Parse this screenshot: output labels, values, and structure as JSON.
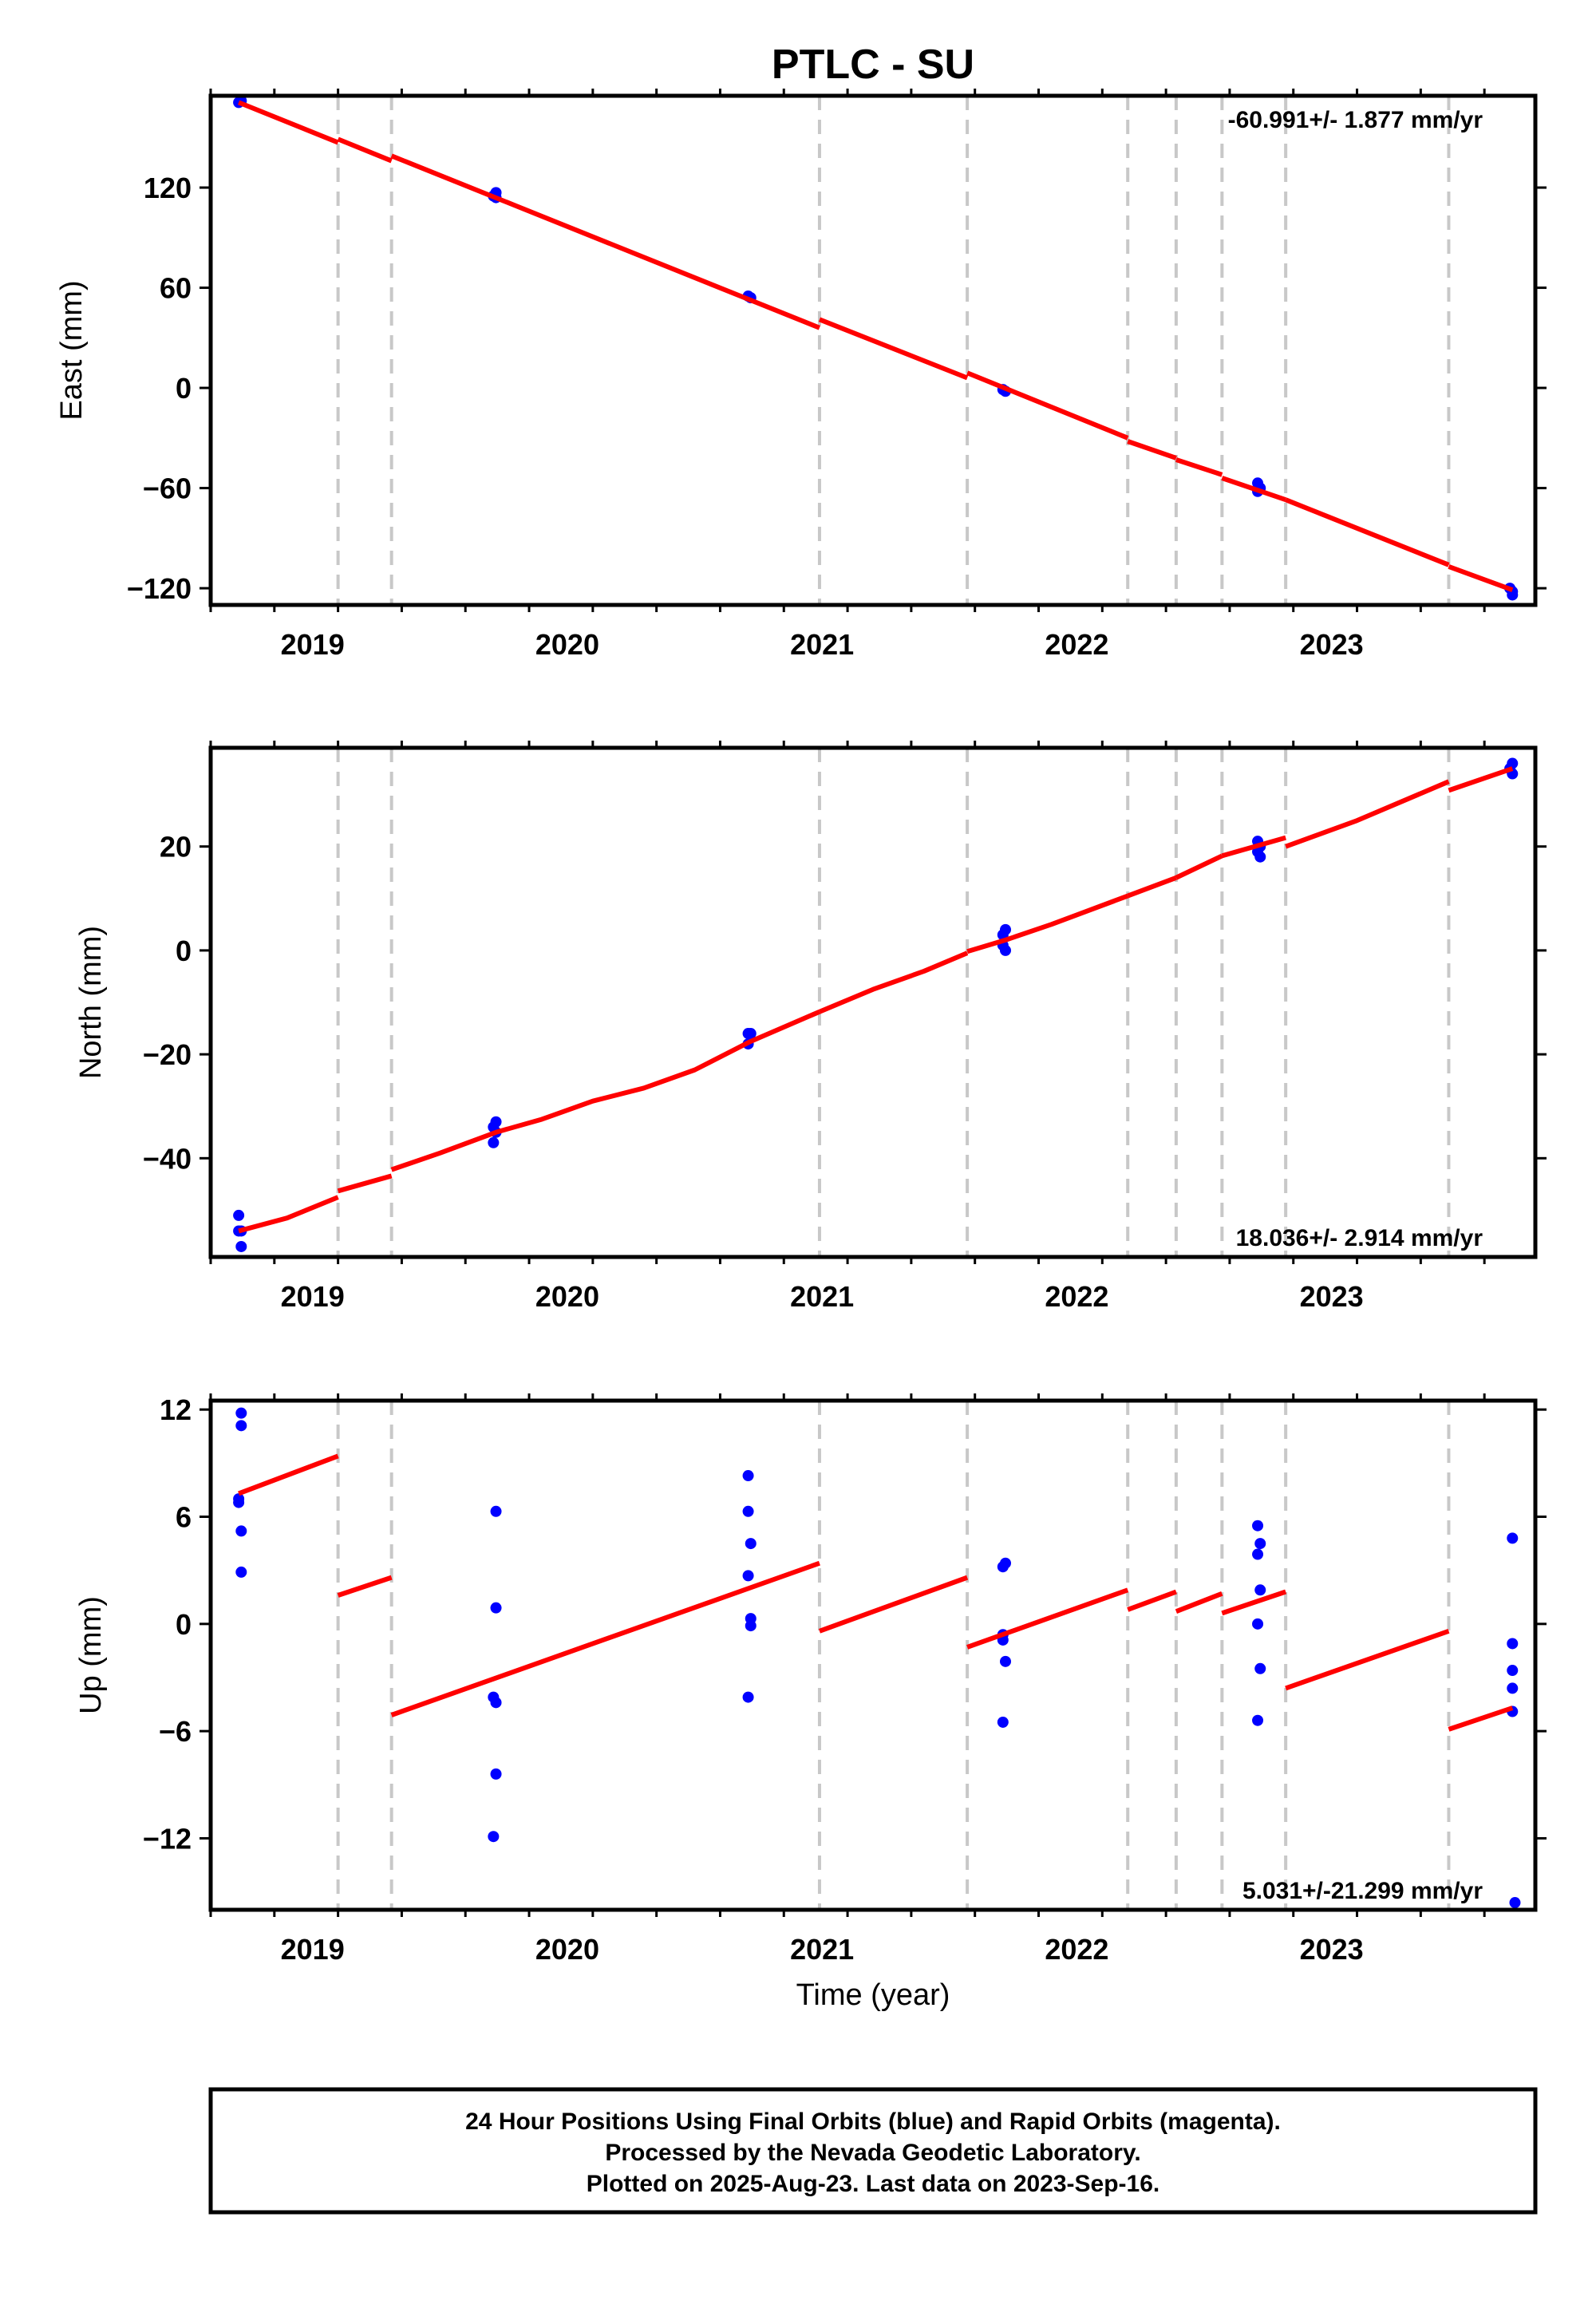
{
  "title": "PTLC - SU",
  "xlabel": "Time (year)",
  "footer": {
    "lines": [
      "24 Hour Positions Using Final Orbits (blue) and Rapid Orbits (magenta).",
      "Processed by the Nevada Geodetic Laboratory.",
      "Plotted on 2025-Aug-23. Last data on 2023-Sep-16."
    ]
  },
  "colors": {
    "data": "#0000ff",
    "model": "#ff0000",
    "breaks": "#c8c8c8",
    "frame": "#000000"
  },
  "chart_data": [
    {
      "type": "scatter",
      "panel": "east",
      "ylabel": "East (mm)",
      "rate_text": "-60.991+/- 1.877 mm/yr",
      "xlim": [
        2018.6,
        2023.8
      ],
      "ylim": [
        -130,
        175
      ],
      "x_ticks": [
        2019,
        2020,
        2021,
        2022,
        2023
      ],
      "y_ticks": [
        -120,
        -60,
        0,
        60,
        120
      ],
      "y_tick_labels": [
        "−120",
        "−60",
        "0",
        "60",
        "120"
      ],
      "break_lines": [
        2019.1,
        2019.31,
        2020.99,
        2021.57,
        2022.2,
        2022.39,
        2022.57,
        2022.82,
        2023.46
      ],
      "series": [
        {
          "kind": "points",
          "x": [
            2018.71,
            2018.72,
            2019.72,
            2019.71,
            2019.72,
            2020.71,
            2020.72,
            2021.71,
            2021.72,
            2022.71,
            2022.72,
            2022.71,
            2023.7,
            2023.71,
            2023.71
          ],
          "y": [
            171,
            172,
            117,
            115,
            114,
            55,
            54,
            -1,
            -2,
            -57,
            -60,
            -62,
            -120,
            -122,
            -124
          ]
        },
        {
          "kind": "line",
          "segments": [
            [
              [
                2018.71,
                171
              ],
              [
                2019.1,
                147
              ]
            ],
            [
              [
                2019.1,
                149
              ],
              [
                2019.31,
                136
              ]
            ],
            [
              [
                2019.31,
                139
              ],
              [
                2020.99,
                36
              ]
            ],
            [
              [
                2020.99,
                41
              ],
              [
                2021.57,
                6
              ]
            ],
            [
              [
                2021.57,
                9
              ],
              [
                2022.2,
                -30
              ]
            ],
            [
              [
                2022.2,
                -32
              ],
              [
                2022.39,
                -42
              ]
            ],
            [
              [
                2022.39,
                -43
              ],
              [
                2022.57,
                -52
              ]
            ],
            [
              [
                2022.57,
                -54
              ],
              [
                2022.82,
                -67
              ]
            ],
            [
              [
                2022.82,
                -67
              ],
              [
                2023.46,
                -106
              ]
            ],
            [
              [
                2023.46,
                -107
              ],
              [
                2023.71,
                -121
              ]
            ]
          ]
        }
      ]
    },
    {
      "type": "scatter",
      "panel": "north",
      "ylabel": "North (mm)",
      "rate_text": "18.036+/- 2.914 mm/yr",
      "xlim": [
        2018.6,
        2023.8
      ],
      "ylim": [
        -59,
        39
      ],
      "x_ticks": [
        2019,
        2020,
        2021,
        2022,
        2023
      ],
      "y_ticks": [
        -40,
        -20,
        0,
        20
      ],
      "y_tick_labels": [
        "−40",
        "−20",
        "0",
        "20"
      ],
      "break_lines": [
        2019.1,
        2019.31,
        2020.99,
        2021.57,
        2022.2,
        2022.39,
        2022.57,
        2022.82,
        2023.46
      ],
      "series": [
        {
          "kind": "points",
          "x": [
            2018.71,
            2018.72,
            2018.71,
            2018.72,
            2019.72,
            2019.71,
            2019.72,
            2019.71,
            2020.71,
            2020.72,
            2020.71,
            2021.71,
            2021.72,
            2021.71,
            2021.72,
            2022.71,
            2022.72,
            2022.71,
            2022.72,
            2023.7,
            2023.71,
            2023.71
          ],
          "y": [
            -51,
            -54,
            -54,
            -57,
            -33,
            -34,
            -35,
            -37,
            -16,
            -16,
            -18,
            3,
            4,
            1,
            0,
            19,
            20,
            21,
            18,
            35,
            36,
            34
          ]
        },
        {
          "kind": "line",
          "segments": [
            [
              [
                2018.71,
                -54
              ],
              [
                2018.9,
                -51.5
              ],
              [
                2019.1,
                -47.5
              ]
            ],
            [
              [
                2019.1,
                -46.3
              ],
              [
                2019.31,
                -43.4
              ]
            ],
            [
              [
                2019.31,
                -42.2
              ],
              [
                2019.5,
                -39
              ],
              [
                2019.72,
                -35
              ],
              [
                2019.9,
                -32.5
              ],
              [
                2020.1,
                -29
              ],
              [
                2020.3,
                -26.5
              ],
              [
                2020.5,
                -23
              ],
              [
                2020.72,
                -17.5
              ],
              [
                2020.99,
                -11.8
              ]
            ],
            [
              [
                2020.99,
                -11.8
              ],
              [
                2021.2,
                -7.5
              ],
              [
                2021.4,
                -4
              ],
              [
                2021.57,
                -0.5
              ]
            ],
            [
              [
                2021.57,
                -0.2
              ],
              [
                2021.72,
                2
              ],
              [
                2021.9,
                5
              ],
              [
                2022.2,
                10.5
              ]
            ],
            [
              [
                2022.2,
                10.5
              ],
              [
                2022.39,
                14
              ]
            ],
            [
              [
                2022.39,
                14
              ],
              [
                2022.57,
                18.2
              ]
            ],
            [
              [
                2022.57,
                18.2
              ],
              [
                2022.82,
                21.7
              ]
            ],
            [
              [
                2022.82,
                20
              ],
              [
                2023.1,
                25
              ],
              [
                2023.46,
                32.5
              ]
            ],
            [
              [
                2023.46,
                30.8
              ],
              [
                2023.71,
                35
              ]
            ]
          ]
        }
      ]
    },
    {
      "type": "scatter",
      "panel": "up",
      "ylabel": "Up (mm)",
      "rate_text": "5.031+/-21.299 mm/yr",
      "xlim": [
        2018.6,
        2023.8
      ],
      "ylim": [
        -16,
        12.5
      ],
      "x_ticks": [
        2019,
        2020,
        2021,
        2022,
        2023
      ],
      "y_ticks": [
        -12,
        -6,
        0,
        6,
        12
      ],
      "y_tick_labels": [
        "−12",
        "−6",
        "0",
        "6",
        "12"
      ],
      "break_lines": [
        2019.1,
        2019.31,
        2020.99,
        2021.57,
        2022.2,
        2022.39,
        2022.57,
        2022.82,
        2023.46
      ],
      "series": [
        {
          "kind": "points",
          "x": [
            2018.72,
            2018.72,
            2018.71,
            2018.71,
            2018.72,
            2018.72,
            2019.72,
            2019.72,
            2019.71,
            2019.72,
            2019.72,
            2019.71,
            2020.71,
            2020.71,
            2020.72,
            2020.71,
            2020.72,
            2020.72,
            2020.71,
            2021.71,
            2021.72,
            2021.71,
            2021.71,
            2021.72,
            2021.71,
            2022.71,
            2022.72,
            2022.71,
            2022.72,
            2022.71,
            2022.72,
            2022.71,
            2023.71,
            2023.71,
            2023.71,
            2023.71,
            2023.71,
            2023.72
          ],
          "y": [
            11.8,
            11.1,
            7.0,
            6.8,
            5.2,
            2.9,
            6.3,
            0.9,
            -4.1,
            -4.4,
            -8.4,
            -11.9,
            8.3,
            6.3,
            4.5,
            2.7,
            0.3,
            -0.1,
            -4.1,
            3.2,
            3.4,
            -0.6,
            -0.9,
            -2.1,
            -5.5,
            5.5,
            4.5,
            3.9,
            1.9,
            0.0,
            -2.5,
            -5.4,
            4.8,
            -1.1,
            -2.6,
            -3.6,
            -4.9,
            -15.6
          ]
        },
        {
          "kind": "line",
          "segments": [
            [
              [
                2018.71,
                7.3
              ],
              [
                2019.1,
                9.4
              ]
            ],
            [
              [
                2019.1,
                1.6
              ],
              [
                2019.31,
                2.6
              ]
            ],
            [
              [
                2019.31,
                -5.1
              ],
              [
                2020.99,
                3.4
              ]
            ],
            [
              [
                2020.99,
                -0.4
              ],
              [
                2021.57,
                2.6
              ]
            ],
            [
              [
                2021.57,
                -1.3
              ],
              [
                2022.2,
                1.9
              ]
            ],
            [
              [
                2022.2,
                0.8
              ],
              [
                2022.39,
                1.8
              ]
            ],
            [
              [
                2022.39,
                0.7
              ],
              [
                2022.57,
                1.7
              ]
            ],
            [
              [
                2022.57,
                0.6
              ],
              [
                2022.82,
                1.8
              ]
            ],
            [
              [
                2022.82,
                -3.6
              ],
              [
                2023.46,
                -0.4
              ]
            ],
            [
              [
                2023.46,
                -5.9
              ],
              [
                2023.71,
                -4.7
              ]
            ]
          ]
        }
      ]
    }
  ]
}
